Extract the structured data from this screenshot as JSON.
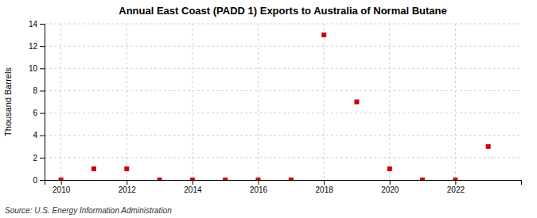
{
  "chart_data": {
    "type": "scatter",
    "title": "Annual East Coast (PADD 1) Exports to Australia of Normal Butane",
    "ylabel": "Thousand Barrels",
    "source": "Source: U.S. Energy Information Administration",
    "x": [
      2010,
      2011,
      2012,
      2013,
      2014,
      2015,
      2016,
      2017,
      2018,
      2019,
      2020,
      2021,
      2022,
      2023
    ],
    "values": [
      0,
      1,
      1,
      0,
      0,
      0,
      0,
      0,
      13,
      7,
      1,
      0,
      0,
      3
    ],
    "xlim": [
      2009.5,
      2024.0
    ],
    "ylim": [
      0,
      14
    ],
    "xticks": [
      2010,
      2012,
      2014,
      2016,
      2018,
      2020,
      2022
    ],
    "yticks": [
      0,
      2,
      4,
      6,
      8,
      10,
      12,
      14
    ],
    "color": "#cc0000",
    "marker": "square",
    "grid": true
  }
}
